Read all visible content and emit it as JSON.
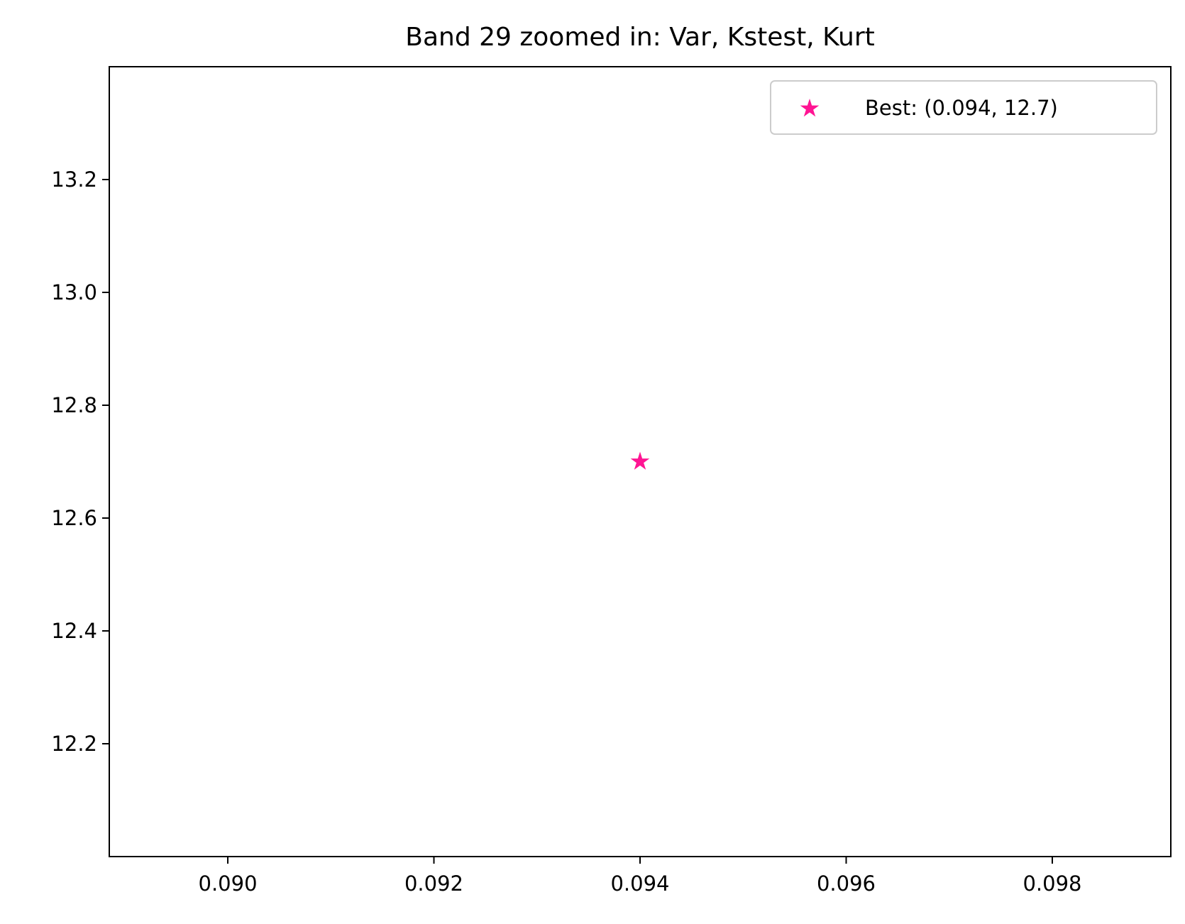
{
  "chart_data": {
    "type": "scatter",
    "title": "Band 29 zoomed in: Var, Kstest, Kurt",
    "xlabel": "",
    "ylabel": "",
    "xlim": [
      0.08885,
      0.09915
    ],
    "ylim": [
      12.0,
      13.4
    ],
    "xticks": [
      0.09,
      0.092,
      0.094,
      0.096,
      0.098
    ],
    "xtick_labels": [
      "0.090",
      "0.092",
      "0.094",
      "0.096",
      "0.098"
    ],
    "yticks": [
      12.2,
      12.4,
      12.6,
      12.8,
      13.0,
      13.2
    ],
    "ytick_labels": [
      "12.2",
      "12.4",
      "12.6",
      "12.8",
      "13.0",
      "13.2"
    ],
    "grid": false,
    "legend": {
      "position": "top-right"
    },
    "series": [
      {
        "name": "Best: (0.094, 12.7)",
        "marker": "star",
        "color": "#ff1493",
        "points": [
          {
            "x": 0.094,
            "y": 12.7
          }
        ]
      }
    ]
  }
}
